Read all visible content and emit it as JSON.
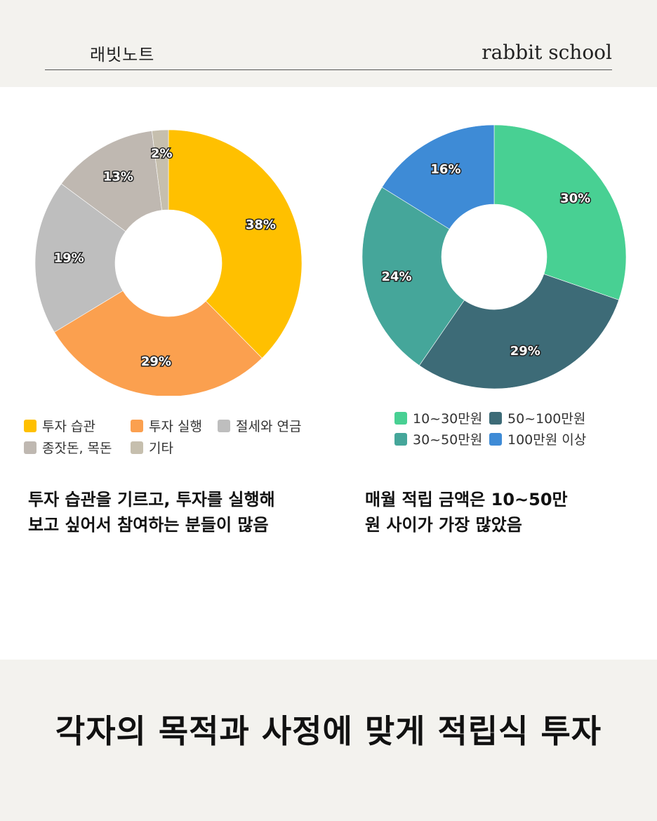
{
  "header": {
    "brand_korean": "래빗노트",
    "brand_english": "rabbit school"
  },
  "chart_data": [
    {
      "type": "pie",
      "donut": true,
      "slices": [
        {
          "label": "투자 습관",
          "value": 38,
          "value_label": "38%",
          "color": "#FFC000"
        },
        {
          "label": "투자 실행",
          "value": 29,
          "value_label": "29%",
          "color": "#FBA04F"
        },
        {
          "label": "절세와 연금",
          "value": 19,
          "value_label": "19%",
          "color": "#BEBEBE"
        },
        {
          "label": "종잣돈, 목돈",
          "value": 13,
          "value_label": "13%",
          "color": "#BFB8B1"
        },
        {
          "label": "기타",
          "value": 2,
          "value_label": "2%",
          "color": "#C6BFAE"
        }
      ],
      "legend_position": "bottom"
    },
    {
      "type": "pie",
      "donut": true,
      "slices": [
        {
          "label": "10~30만원",
          "value": 30,
          "value_label": "30%",
          "color": "#48D093"
        },
        {
          "label": "50~100만원",
          "value": 29,
          "value_label": "29%",
          "color": "#3D6B77"
        },
        {
          "label": "30~50만원",
          "value": 24,
          "value_label": "24%",
          "color": "#45A69A"
        },
        {
          "label": "100만원 이상",
          "value": 16,
          "value_label": "16%",
          "color": "#3E8BD6"
        }
      ],
      "legend_position": "bottom"
    }
  ],
  "legends": {
    "left": [
      "투자 습관",
      "투자 실행",
      "절세와 연금",
      "종잣돈, 목돈",
      "기타"
    ],
    "right": [
      "10~30만원",
      "50~100만원",
      "30~50만원",
      "100만원 이상"
    ]
  },
  "captions": {
    "left_line1": "투자 습관을 기르고, 투자를 실행해",
    "left_line2": "보고 싶어서 참여하는 분들이 많음",
    "right_line1": "매월 적립 금액은 10~50만",
    "right_line2": "원 사이가 가장 많았음"
  },
  "footer": {
    "headline": "각자의 목적과 사정에 맞게 적립식 투자"
  }
}
